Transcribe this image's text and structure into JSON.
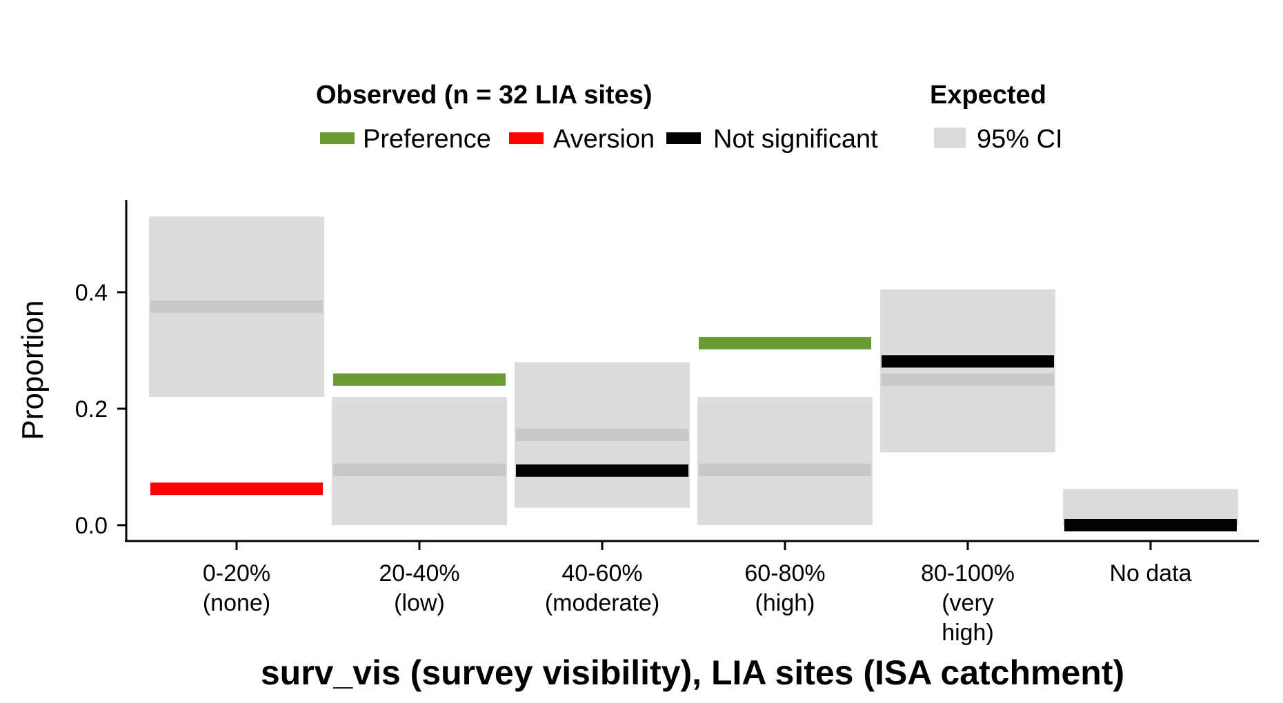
{
  "chart_data": {
    "type": "bar",
    "xlabel": "surv_vis (survey visibility), LIA sites (ISA catchment)",
    "ylabel": "Proportion",
    "ylim": [
      0,
      0.55
    ],
    "yticks": [
      0.0,
      0.2,
      0.4
    ],
    "ytick_labels": [
      "0.0",
      "0.2",
      "0.4"
    ],
    "categories": [
      "0-20%\n(none)",
      "20-40%\n(low)",
      "40-60%\n(moderate)",
      "60-80%\n(high)",
      "80-100%\n(very\nhigh)",
      "No data"
    ],
    "observed": [
      {
        "value": 0.0625,
        "status": "Aversion"
      },
      {
        "value": 0.25,
        "status": "Preference"
      },
      {
        "value": 0.09375,
        "status": "Not significant"
      },
      {
        "value": 0.3125,
        "status": "Preference"
      },
      {
        "value": 0.28125,
        "status": "Not significant"
      },
      {
        "value": 0.0,
        "status": "Not significant"
      }
    ],
    "expected": [
      {
        "mean": 0.375,
        "ci": [
          0.22,
          0.53
        ]
      },
      {
        "mean": 0.095,
        "ci": [
          0.0,
          0.22
        ]
      },
      {
        "mean": 0.155,
        "ci": [
          0.03,
          0.28
        ]
      },
      {
        "mean": 0.095,
        "ci": [
          0.0,
          0.22
        ]
      },
      {
        "mean": 0.25,
        "ci": [
          0.125,
          0.405
        ]
      },
      {
        "mean": 0.0,
        "ci": [
          0.0,
          0.062
        ]
      }
    ],
    "legend": {
      "placement": "top",
      "observed_title": "Observed (n = 32 LIA sites)",
      "observed_entries": [
        {
          "label": "Preference",
          "color": "#6a9a34"
        },
        {
          "label": "Aversion",
          "color": "#ff0000"
        },
        {
          "label": "Not significant",
          "color": "#000000"
        }
      ],
      "expected_title": "Expected",
      "expected_entries": [
        {
          "label": "95% CI",
          "color": "#dcdcdc"
        }
      ]
    },
    "colors": {
      "ci_fill": "#dcdcdc",
      "expected_mean": "#c8c8c8",
      "Preference": "#6a9a34",
      "Aversion": "#ff0000",
      "Not significant": "#000000"
    },
    "grid": false
  }
}
